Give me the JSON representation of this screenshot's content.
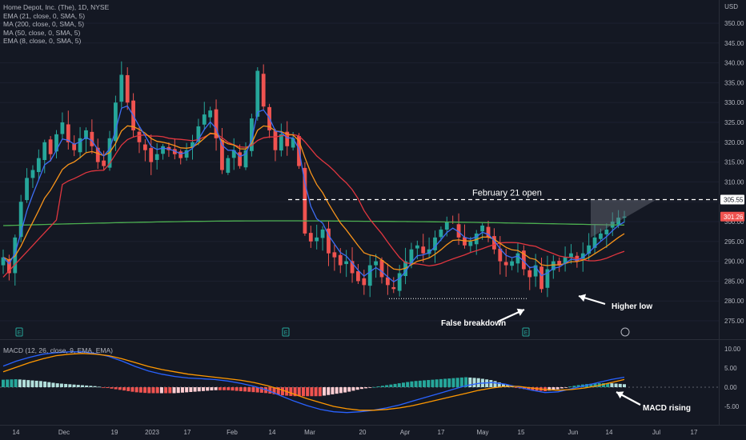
{
  "header": {
    "title": "Home Depot, Inc. (The), 1D, NYSE",
    "currency": "USD",
    "indicators": [
      "EMA (21, close, 0, SMA, 5)",
      "MA (200, close, 0, SMA, 5)",
      "MA (50, close, 0, SMA, 5)",
      "EMA (8, close, 0, SMA, 5)"
    ],
    "macd_title": "MACD (12, 26, close, 9, EMA, EMA)"
  },
  "colors": {
    "background": "#141823",
    "up": "#26a69a",
    "down": "#ef5350",
    "ema8": "#3d6ef5",
    "ema21": "#f7931a",
    "ma50": "#e0363f",
    "ma200": "#4caf50",
    "macd_line": "#2962ff",
    "signal_line": "#ff9800",
    "hist_up": "#26a69a",
    "hist_up_light": "#b2dfdb",
    "hist_down": "#ef5350",
    "hist_down_light": "#ffcdd2"
  },
  "chart_data": [
    {
      "type": "candlestick",
      "panel": "price",
      "y_axis_ticks": [
        275.0,
        280.0,
        285.0,
        290.0,
        295.0,
        300.0,
        305.0,
        310.0,
        315.0,
        320.0,
        325.0,
        330.0,
        335.0,
        340.0,
        345.0,
        350.0
      ],
      "ylim": [
        272.5,
        353.5
      ],
      "x_axis_labels": [
        "14",
        "Dec",
        "19",
        "2023",
        "17",
        "Feb",
        "14",
        "Mar",
        "20",
        "Apr",
        "17",
        "May",
        "15",
        "Jun",
        "14",
        "Jul",
        "17"
      ],
      "close_series": [
        291,
        287,
        296,
        305,
        311,
        313,
        316,
        320,
        317,
        322,
        325,
        320,
        318,
        321,
        323,
        319,
        315,
        314,
        321,
        330,
        337,
        330,
        323,
        320,
        318,
        315,
        317,
        319,
        318,
        317,
        316,
        318,
        320,
        324,
        327,
        328,
        321,
        313,
        316,
        318,
        314,
        318,
        326,
        338,
        329,
        323,
        318,
        322,
        319,
        321,
        314,
        297,
        295,
        296,
        298,
        292,
        291,
        289,
        290,
        287,
        285,
        284,
        289,
        290,
        286,
        284,
        283,
        287,
        290,
        293,
        294,
        292,
        293,
        296,
        298,
        300,
        300,
        296,
        294,
        295,
        297,
        299,
        296,
        293,
        290,
        289,
        290,
        292,
        288,
        286,
        289,
        283,
        288,
        290,
        289,
        291,
        292,
        290,
        292,
        294,
        296,
        297,
        298,
        300,
        301,
        301.26
      ],
      "markers": {
        "last_price": 301.26,
        "resistance": 305.55,
        "support": 280.0
      },
      "annotations": [
        {
          "text": "February 21 open"
        },
        {
          "text": "False breakdown"
        },
        {
          "text": "Higher low"
        }
      ]
    },
    {
      "type": "bar",
      "panel": "macd",
      "y_axis_ticks": [
        -5.0,
        0.0,
        5.0,
        10.0
      ],
      "ylim": [
        -7,
        11
      ],
      "macd_line": [
        5.5,
        6.8,
        7.8,
        8.6,
        9.0,
        9.2,
        9.2,
        8.8,
        8.0,
        6.8,
        5.4,
        4.2,
        3.4,
        2.8,
        2.4,
        2.2,
        2.0,
        1.6,
        1.0,
        0.2,
        -0.8,
        -2.2,
        -3.6,
        -4.8,
        -5.8,
        -6.4,
        -6.6,
        -6.4,
        -6.0,
        -5.4,
        -4.6,
        -3.6,
        -2.6,
        -1.6,
        -0.6,
        0.4,
        1.0,
        1.2,
        0.8,
        0.0,
        -0.8,
        -1.4,
        -1.2,
        -0.4,
        0.4,
        1.2,
        2.0,
        2.6
      ],
      "signal_line": [
        4.0,
        5.2,
        6.4,
        7.4,
        8.2,
        8.6,
        8.8,
        8.6,
        8.2,
        7.4,
        6.4,
        5.4,
        4.6,
        4.0,
        3.4,
        3.0,
        2.6,
        2.2,
        1.8,
        1.2,
        0.4,
        -0.6,
        -1.8,
        -3.0,
        -4.0,
        -5.0,
        -5.6,
        -6.0,
        -6.0,
        -5.8,
        -5.4,
        -4.8,
        -4.0,
        -3.2,
        -2.4,
        -1.6,
        -0.8,
        -0.2,
        0.2,
        0.2,
        -0.2,
        -0.6,
        -0.8,
        -0.6,
        -0.2,
        0.4,
        1.2,
        2.0
      ],
      "annotations": [
        {
          "text": "MACD rising"
        }
      ]
    }
  ]
}
